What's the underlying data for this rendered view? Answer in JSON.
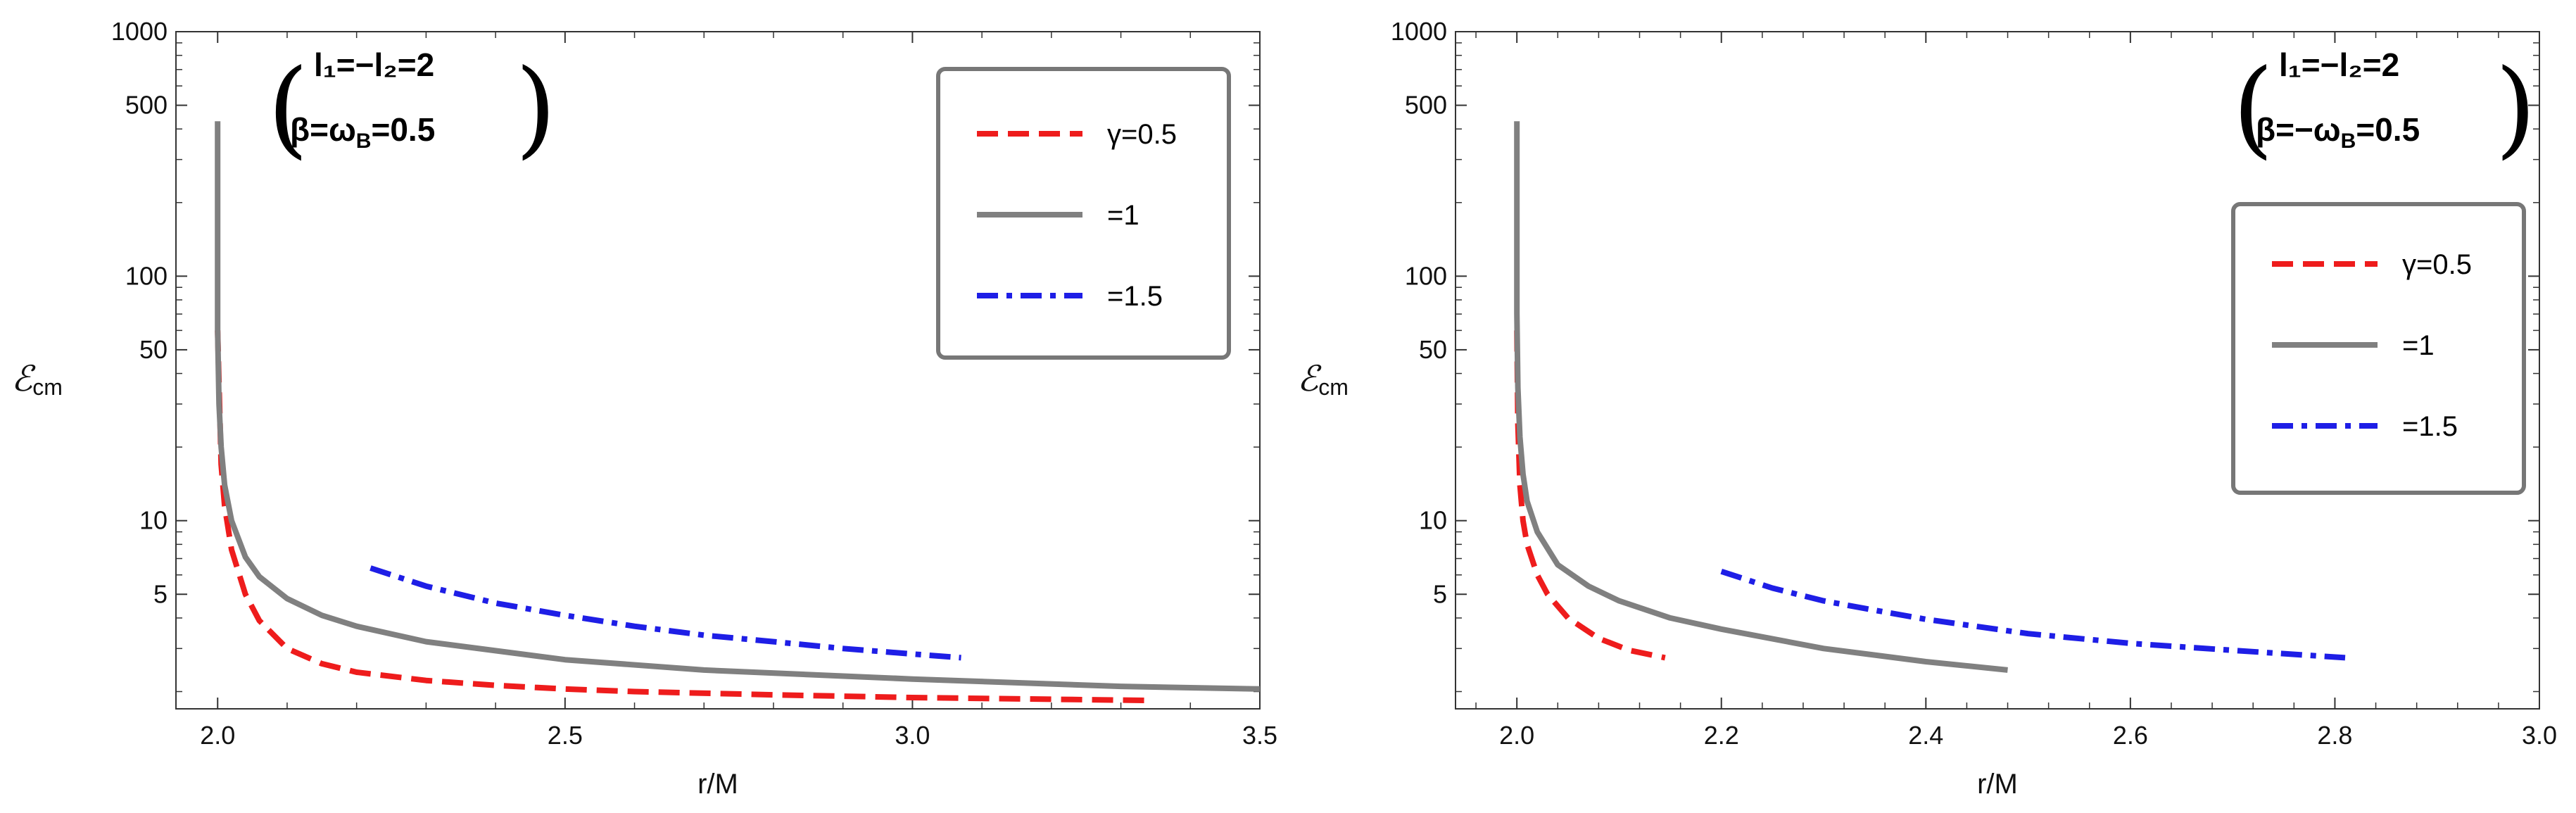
{
  "colors": {
    "red": "#ee1c1c",
    "gray": "#808080",
    "blue": "#1e1ee6",
    "frame": "#333333",
    "legend_border": "#777777"
  },
  "chart_data": [
    {
      "type": "line",
      "yscale": "log",
      "xlim": [
        1.94,
        3.5
      ],
      "ylim": [
        1.7,
        1000
      ],
      "xticks": [
        2.0,
        2.5,
        3.0,
        3.5
      ],
      "xtick_labels": [
        "2.0",
        "2.5",
        "3.0",
        "3.5"
      ],
      "yticks": [
        5,
        10,
        50,
        100,
        500,
        1000
      ],
      "ytick_labels": [
        "5",
        "10",
        "50",
        "100",
        "500",
        "1000"
      ],
      "xlabel": "r/M",
      "ylabel_main": "ℰ",
      "ylabel_sub": "cm",
      "annotation": {
        "line1": "l₁=−l₂=2",
        "line2_prefix": "β=ω",
        "line2_sub": "B",
        "line2_suffix": "=0.5"
      },
      "legend_position": "top-right",
      "series": [
        {
          "name": "γ=0.5",
          "legend_label": "γ=0.5",
          "style": "dashed",
          "color": "red",
          "x": [
            2.0,
            2.005,
            2.01,
            2.02,
            2.04,
            2.06,
            2.1,
            2.15,
            2.2,
            2.3,
            2.4,
            2.5,
            2.6,
            2.8,
            3.0,
            3.2,
            3.34
          ],
          "y": [
            60,
            17,
            11.5,
            7.6,
            5.0,
            3.9,
            3.0,
            2.6,
            2.4,
            2.22,
            2.12,
            2.05,
            2.0,
            1.94,
            1.89,
            1.86,
            1.84
          ]
        },
        {
          "name": "γ=1",
          "legend_label": "=1",
          "style": "solid",
          "color": "gray",
          "x": [
            2.0,
            2.0,
            2.002,
            2.005,
            2.01,
            2.02,
            2.04,
            2.06,
            2.1,
            2.15,
            2.2,
            2.3,
            2.5,
            2.7,
            3.0,
            3.3,
            3.5
          ],
          "y": [
            430,
            60,
            30,
            20,
            14,
            10,
            7.1,
            5.9,
            4.8,
            4.1,
            3.7,
            3.2,
            2.7,
            2.45,
            2.25,
            2.1,
            2.05
          ]
        },
        {
          "name": "γ=1.5",
          "legend_label": "=1.5",
          "style": "dashdot",
          "color": "blue",
          "x": [
            2.22,
            2.3,
            2.4,
            2.5,
            2.6,
            2.7,
            2.8,
            2.9,
            3.0,
            3.07
          ],
          "y": [
            6.4,
            5.4,
            4.6,
            4.1,
            3.7,
            3.4,
            3.2,
            3.0,
            2.85,
            2.75
          ]
        }
      ]
    },
    {
      "type": "line",
      "yscale": "log",
      "xlim": [
        1.94,
        3.0
      ],
      "ylim": [
        1.7,
        1000
      ],
      "xticks": [
        2.0,
        2.2,
        2.4,
        2.6,
        2.8,
        3.0
      ],
      "xtick_labels": [
        "2.0",
        "2.2",
        "2.4",
        "2.6",
        "2.8",
        "3.0"
      ],
      "yticks": [
        5,
        10,
        50,
        100,
        500,
        1000
      ],
      "ytick_labels": [
        "5",
        "10",
        "50",
        "100",
        "500",
        "1000"
      ],
      "xlabel": "r/M",
      "ylabel_main": "ℰ",
      "ylabel_sub": "cm",
      "annotation": {
        "line1": "l₁=−l₂=2",
        "line2_prefix": "β=−ω",
        "line2_sub": "B",
        "line2_suffix": "=0.5"
      },
      "legend_position": "middle-right",
      "series": [
        {
          "name": "γ=0.5",
          "legend_label": "γ=0.5",
          "style": "dashed",
          "color": "red",
          "x": [
            2.0,
            2.001,
            2.003,
            2.006,
            2.01,
            2.02,
            2.03,
            2.05,
            2.08,
            2.11,
            2.145
          ],
          "y": [
            60,
            25,
            14,
            10,
            8.0,
            6.0,
            5.0,
            4.0,
            3.3,
            2.95,
            2.75
          ]
        },
        {
          "name": "γ=1",
          "legend_label": "=1",
          "style": "solid",
          "color": "gray",
          "x": [
            2.0,
            2.0,
            2.001,
            2.003,
            2.006,
            2.01,
            2.02,
            2.04,
            2.07,
            2.1,
            2.15,
            2.2,
            2.3,
            2.4,
            2.48
          ],
          "y": [
            430,
            70,
            35,
            22,
            15.5,
            12,
            9.0,
            6.6,
            5.4,
            4.7,
            4.0,
            3.6,
            3.0,
            2.65,
            2.45
          ]
        },
        {
          "name": "γ=1.5",
          "legend_label": "=1.5",
          "style": "dashdot",
          "color": "blue",
          "x": [
            2.2,
            2.25,
            2.3,
            2.35,
            2.4,
            2.5,
            2.6,
            2.7,
            2.81
          ],
          "y": [
            6.2,
            5.3,
            4.7,
            4.3,
            3.95,
            3.45,
            3.15,
            2.95,
            2.75
          ]
        }
      ]
    }
  ]
}
